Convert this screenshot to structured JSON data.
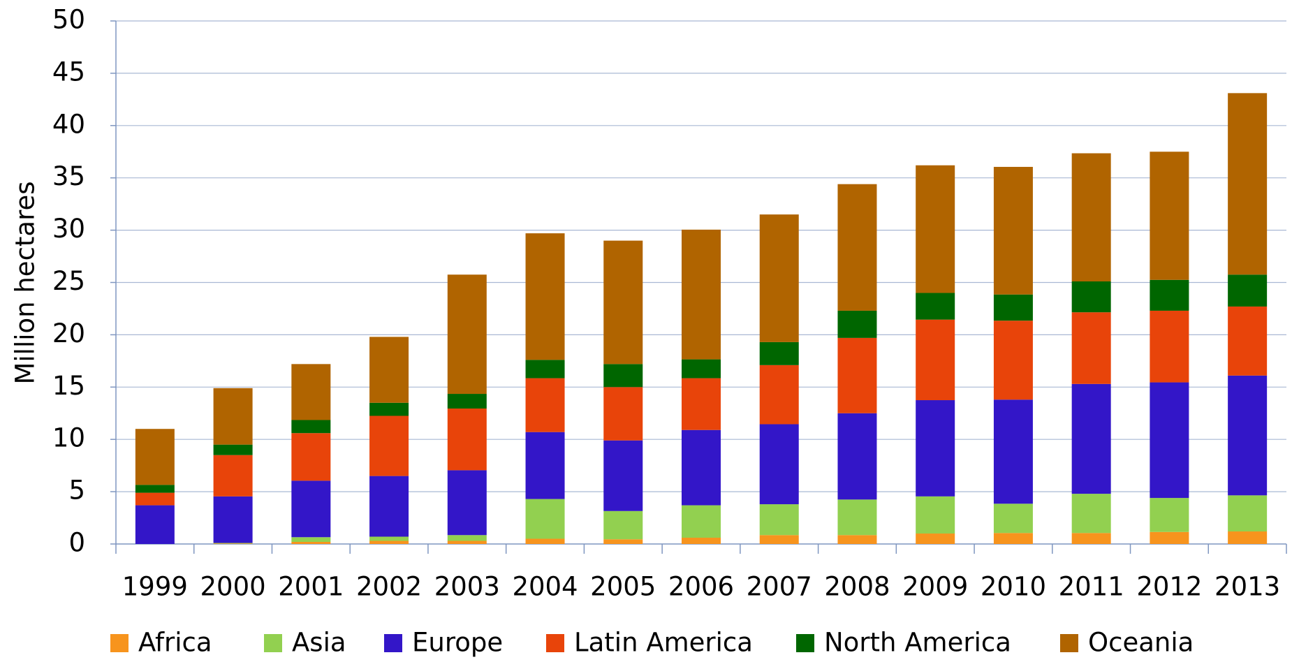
{
  "chart_data": {
    "type": "stacked_bar",
    "y_label": "Million hectares",
    "categories": [
      "1999",
      "2000",
      "2001",
      "2002",
      "2003",
      "2004",
      "2005",
      "2006",
      "2007",
      "2008",
      "2009",
      "2010",
      "2011",
      "2012",
      "2013"
    ],
    "series": [
      {
        "name": "Africa",
        "color": "#f7941d",
        "values": [
          0.0,
          0.05,
          0.2,
          0.3,
          0.3,
          0.5,
          0.45,
          0.6,
          0.85,
          0.85,
          1.0,
          1.05,
          1.05,
          1.15,
          1.2
        ]
      },
      {
        "name": "Asia",
        "color": "#92d050",
        "values": [
          0.0,
          0.05,
          0.45,
          0.4,
          0.55,
          3.8,
          2.7,
          3.1,
          2.95,
          3.4,
          3.55,
          2.8,
          3.75,
          3.25,
          3.45
        ]
      },
      {
        "name": "Europe",
        "color": "#3316c8",
        "values": [
          3.7,
          4.45,
          5.4,
          5.8,
          6.2,
          6.4,
          6.75,
          7.2,
          7.65,
          8.25,
          9.2,
          9.95,
          10.5,
          11.05,
          11.45
        ]
      },
      {
        "name": "Latin America",
        "color": "#e8440a",
        "values": [
          1.2,
          3.95,
          4.55,
          5.75,
          5.9,
          5.15,
          5.1,
          4.95,
          5.65,
          7.2,
          7.7,
          7.55,
          6.85,
          6.85,
          6.6
        ]
      },
      {
        "name": "North America",
        "color": "#006600",
        "values": [
          0.75,
          1.0,
          1.25,
          1.25,
          1.4,
          1.75,
          2.2,
          1.8,
          2.2,
          2.6,
          2.55,
          2.5,
          2.95,
          2.95,
          3.05
        ]
      },
      {
        "name": "Oceania",
        "color": "#b06400",
        "values": [
          5.35,
          5.4,
          5.35,
          6.3,
          11.4,
          12.1,
          11.8,
          12.4,
          12.2,
          12.1,
          12.2,
          12.2,
          12.25,
          12.25,
          17.35
        ]
      }
    ],
    "ylim": [
      0,
      50
    ],
    "yticks": [
      0,
      5,
      10,
      15,
      20,
      25,
      30,
      35,
      40,
      45,
      50
    ],
    "grid": true,
    "legend": "bottom"
  }
}
